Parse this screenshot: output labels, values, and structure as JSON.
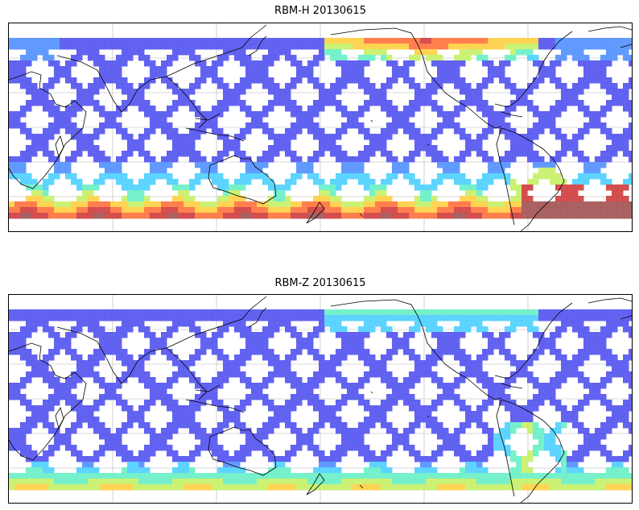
{
  "panels": [
    {
      "title": "RBM-H 20130615",
      "variant": "h"
    },
    {
      "title": "RBM-Z 20130615",
      "variant": "z"
    }
  ],
  "colormap": [
    "#5b5bf0",
    "#5a96ff",
    "#55d2ff",
    "#6ff0c8",
    "#c8f06e",
    "#ffd24b",
    "#ff7846",
    "#d24646",
    "#a55a5a"
  ],
  "land_color": "#000000",
  "grid_color": "#b4b4b4"
}
